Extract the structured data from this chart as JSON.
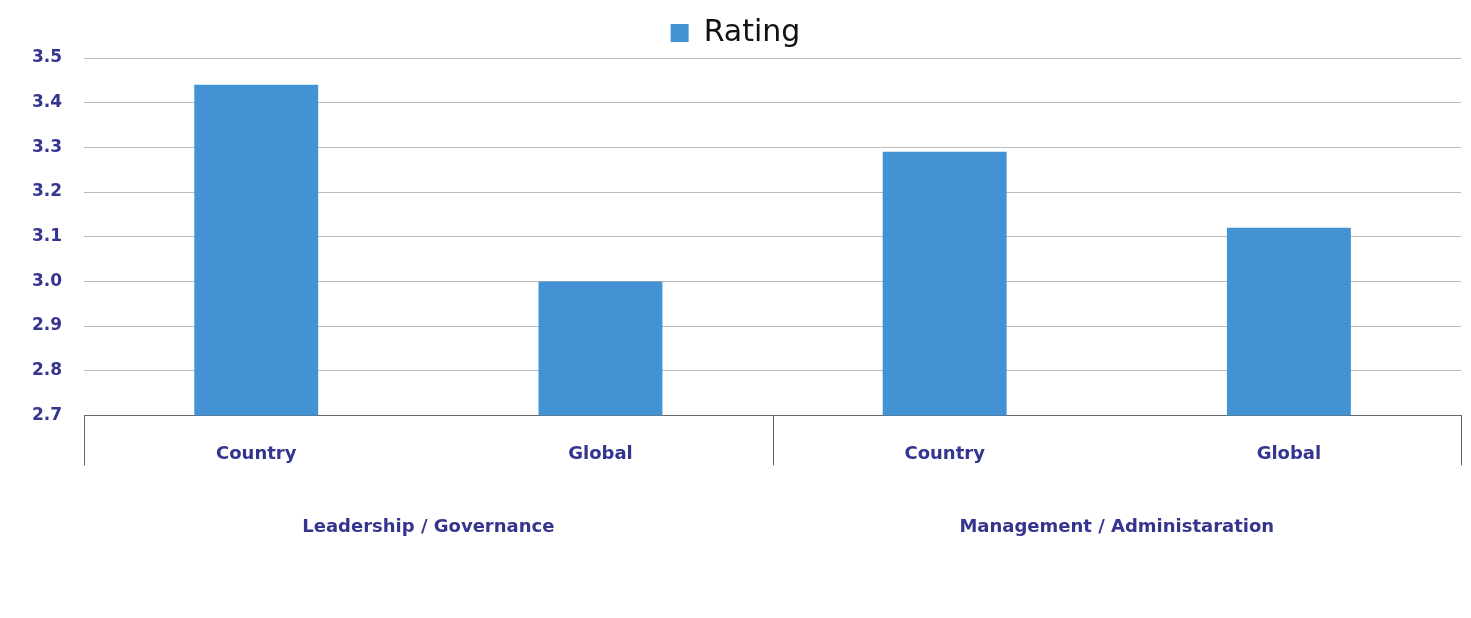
{
  "chart_data": {
    "type": "bar",
    "categories": [
      "Country",
      "Global",
      "Country",
      "Global"
    ],
    "series": [
      {
        "name": "Rating",
        "color": "#4393d4",
        "values": [
          3.44,
          3.0,
          3.29,
          3.12
        ]
      }
    ],
    "ylim": [
      2.7,
      3.5
    ],
    "yticks": [
      2.7,
      2.8,
      2.9,
      {
        "value": 3.0,
        "label": "3.0"
      },
      3.1,
      3.2,
      3.3,
      3.4,
      3.5
    ],
    "grid": "y",
    "legend": "top",
    "annotations": [
      "Leadership / Governance",
      "Management / Administaration"
    ]
  }
}
